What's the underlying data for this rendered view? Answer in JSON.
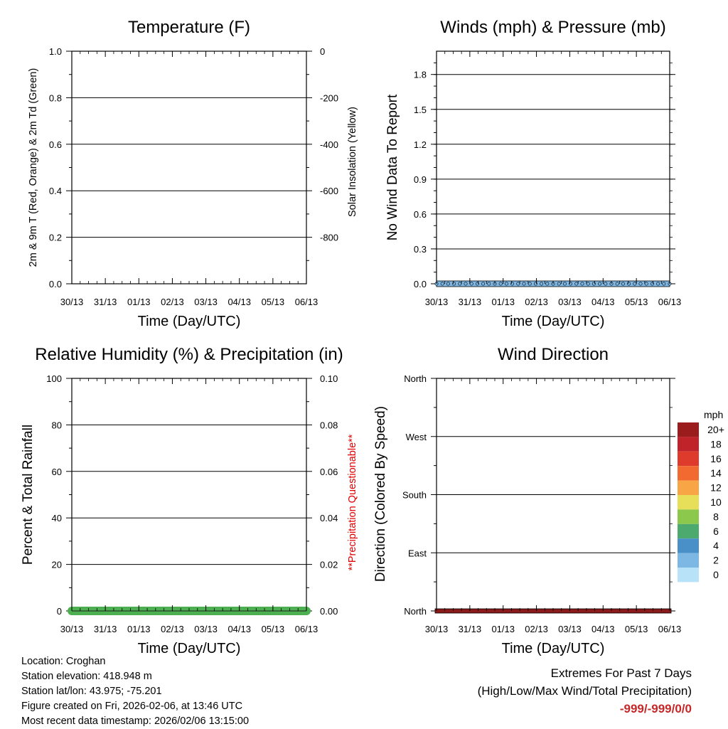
{
  "chart_data": [
    {
      "type": "line",
      "title": "Temperature (F)",
      "xlabel": "Time (Day/UTC)",
      "ylabel": "2m & 9m T (Red, Orange) & 2m Td (Green)",
      "ylabel_right": "Solar Insolation (Yellow)",
      "x_ticks": [
        "30/13",
        "31/13",
        "01/13",
        "02/13",
        "03/13",
        "04/13",
        "05/13",
        "06/13"
      ],
      "ylim": [
        0,
        1
      ],
      "y_ticks": [
        "0.0",
        "0.2",
        "0.4",
        "0.6",
        "0.8",
        "1.0"
      ],
      "ylim_right": [
        -1000,
        0
      ],
      "y_ticks_right": [
        "0",
        "-200",
        "-400",
        "-600",
        "-800"
      ],
      "series": []
    },
    {
      "type": "line",
      "title": "Winds (mph) & Pressure (mb)",
      "xlabel": "Time (Day/UTC)",
      "ylabel": "No Wind Data To Report",
      "x_ticks": [
        "30/13",
        "31/13",
        "01/13",
        "02/13",
        "03/13",
        "04/13",
        "05/13",
        "06/13"
      ],
      "ylim": [
        0,
        2
      ],
      "y_ticks": [
        "0.0",
        "0.3",
        "0.6",
        "0.9",
        "1.2",
        "1.5",
        "1.8"
      ],
      "series": [
        {
          "name": "Wind speed",
          "value": 0,
          "color": "#7fb7e3"
        }
      ]
    },
    {
      "type": "area",
      "title": "Relative Humidity (%) & Precipitation (in)",
      "xlabel": "Time (Day/UTC)",
      "ylabel": "Percent & Total Rainfall",
      "ylabel_right": "**Precipitation Questionable**",
      "x_ticks": [
        "30/13",
        "31/13",
        "01/13",
        "02/13",
        "03/13",
        "04/13",
        "05/13",
        "06/13"
      ],
      "ylim": [
        0,
        100
      ],
      "y_ticks": [
        "0",
        "20",
        "40",
        "60",
        "80",
        "100"
      ],
      "ylim_right": [
        0,
        0.1
      ],
      "y_ticks_right": [
        "0.00",
        "0.02",
        "0.04",
        "0.06",
        "0.08",
        "0.10"
      ],
      "series": [
        {
          "name": "Total precipitation",
          "value": 0,
          "color": "#4caf50"
        }
      ]
    },
    {
      "type": "scatter",
      "title": "Wind Direction",
      "xlabel": "Time (Day/UTC)",
      "ylabel": "Direction (Colored By Speed)",
      "x_ticks": [
        "30/13",
        "31/13",
        "01/13",
        "02/13",
        "03/13",
        "04/13",
        "05/13",
        "06/13"
      ],
      "y_ticks": [
        "North",
        "East",
        "South",
        "West",
        "North"
      ],
      "ylim": [
        0,
        360
      ],
      "series": [
        {
          "name": "Wind direction",
          "value": 0,
          "color": "#8b1a1a"
        }
      ],
      "colorbar": {
        "unit": "mph",
        "labels": [
          "20+",
          "18",
          "16",
          "14",
          "12",
          "10",
          "8",
          "6",
          "4",
          "2",
          "0"
        ],
        "colors": [
          "#9a1c1c",
          "#c0242a",
          "#df3b2c",
          "#f26a30",
          "#f7a545",
          "#e7de5a",
          "#8cc84b",
          "#4caa6e",
          "#4a90c8",
          "#7db7e3",
          "#b8e2f8"
        ]
      }
    }
  ],
  "info": {
    "location": "Location: Croghan",
    "elevation": "Station elevation: 418.948 m",
    "latlon": "Station lat/lon: 43.975; -75.201",
    "created": "Figure created on Fri, 2026-02-06, at 13:46 UTC",
    "timestamp": "Most recent data timestamp: 2026/02/06 13:15:00"
  },
  "extremes": {
    "title": "Extremes For Past 7 Days",
    "subtitle": "(High/Low/Max Wind/Total Precipitation)",
    "values": "-999/-999/0/0"
  }
}
